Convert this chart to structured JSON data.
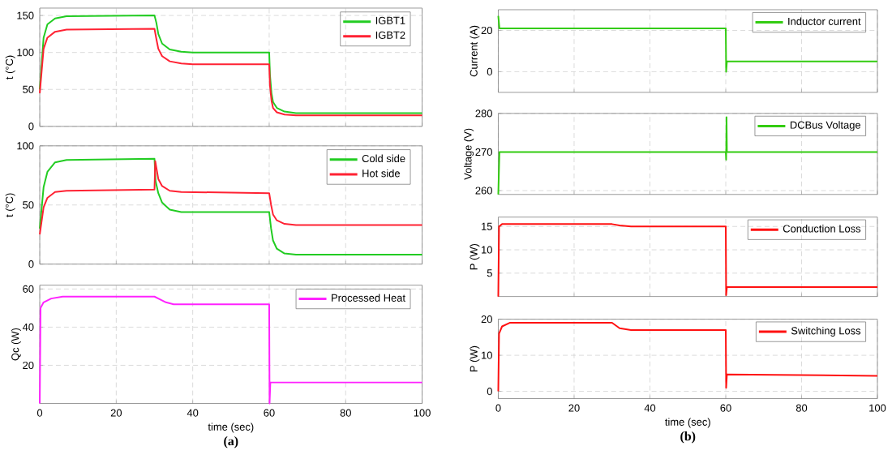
{
  "chart_data": [
    {
      "type": "line",
      "ylabel": "t (°C)",
      "xlim": [
        0,
        100
      ],
      "ylim": [
        0,
        160
      ],
      "xticks": [
        0,
        20,
        40,
        60,
        80,
        100
      ],
      "yticks": [
        0,
        50,
        100,
        150
      ],
      "tick_labels": "y",
      "grid": true,
      "legend": "top right",
      "series": [
        {
          "name": "IGBT1",
          "color": "#22cc22",
          "x": [
            0,
            1,
            2,
            4,
            7,
            30,
            30.5,
            31,
            32,
            34,
            37,
            40,
            60,
            60.2,
            60.6,
            61,
            62,
            64,
            67,
            100
          ],
          "values": [
            50,
            120,
            138,
            146,
            149,
            150,
            140,
            125,
            112,
            104,
            101,
            100,
            100,
            70,
            45,
            33,
            25,
            20,
            18,
            18
          ]
        },
        {
          "name": "IGBT2",
          "color": "#ff2233",
          "x": [
            0,
            1,
            2,
            4,
            7,
            30,
            30.5,
            31,
            32,
            34,
            37,
            40,
            60,
            60.2,
            60.6,
            61,
            62,
            64,
            67,
            100
          ],
          "values": [
            45,
            105,
            120,
            128,
            131,
            132,
            118,
            105,
            95,
            88,
            85,
            84,
            84,
            55,
            35,
            25,
            19,
            16,
            15,
            15
          ]
        }
      ]
    },
    {
      "type": "line",
      "ylabel": "t (°C)",
      "xlim": [
        0,
        100
      ],
      "ylim": [
        0,
        100
      ],
      "xticks": [
        0,
        20,
        40,
        60,
        80,
        100
      ],
      "yticks": [
        0,
        50,
        100
      ],
      "tick_labels": "y",
      "grid": true,
      "legend": "top right",
      "series": [
        {
          "name": "Cold side",
          "color": "#22cc22",
          "x": [
            0,
            1,
            2,
            4,
            7,
            30,
            30.3,
            31,
            32,
            34,
            37,
            60,
            60.5,
            61,
            62,
            64,
            67,
            100
          ],
          "values": [
            30,
            65,
            78,
            86,
            88,
            89,
            70,
            60,
            52,
            46,
            44,
            44,
            30,
            20,
            13,
            9,
            8,
            8
          ]
        },
        {
          "name": "Hot side",
          "color": "#ff2233",
          "x": [
            0,
            1,
            2,
            4,
            7,
            30,
            30.2,
            31,
            32,
            34,
            37,
            60,
            60.5,
            61,
            62,
            64,
            67,
            100
          ],
          "values": [
            25,
            48,
            56,
            61,
            62,
            63,
            87,
            72,
            66,
            62,
            61,
            60,
            50,
            42,
            37,
            34,
            33,
            33
          ]
        }
      ]
    },
    {
      "type": "line",
      "ylabel": "Qc (W)",
      "xlabel": "time (sec)",
      "xlim": [
        0,
        100
      ],
      "ylim": [
        0,
        62
      ],
      "xticks": [
        0,
        20,
        40,
        60,
        80,
        100
      ],
      "yticks": [
        20,
        40,
        60
      ],
      "grid": true,
      "legend": "top right",
      "annotations": [
        "(a)"
      ],
      "series": [
        {
          "name": "Processed Heat",
          "color": "#ff22ff",
          "x": [
            0,
            0.2,
            1,
            3,
            6,
            30,
            31,
            33,
            35,
            60,
            60.1,
            60.3,
            100
          ],
          "values": [
            0,
            50,
            53,
            55,
            56,
            56,
            55,
            53,
            52,
            52,
            0,
            11,
            11
          ]
        }
      ]
    },
    {
      "type": "line",
      "ylabel": "Current (A)",
      "xlim": [
        0,
        100
      ],
      "ylim": [
        -10,
        30
      ],
      "xticks": [
        0,
        20,
        40,
        60,
        80,
        100
      ],
      "yticks": [
        0,
        20
      ],
      "tick_labels": "y",
      "grid": true,
      "legend": "top right",
      "series": [
        {
          "name": "Inductor current",
          "color": "#33cc11",
          "x": [
            0,
            0.3,
            60,
            60.1,
            60.3,
            100
          ],
          "values": [
            27,
            21,
            21,
            0,
            5,
            5
          ]
        }
      ]
    },
    {
      "type": "line",
      "ylabel": "Voltage (V)",
      "xlim": [
        0,
        100
      ],
      "ylim": [
        259,
        280
      ],
      "xticks": [
        0,
        20,
        40,
        60,
        80,
        100
      ],
      "yticks": [
        260,
        270,
        280
      ],
      "tick_labels": "y",
      "grid": true,
      "legend": "top right",
      "series": [
        {
          "name": "DCBus Voltage",
          "color": "#33cc11",
          "x": [
            0,
            0.3,
            60,
            60.1,
            60.2,
            60.3,
            100
          ],
          "values": [
            259,
            270,
            270,
            268,
            279,
            270,
            270
          ]
        }
      ]
    },
    {
      "type": "line",
      "ylabel": "P (W)",
      "xlim": [
        0,
        100
      ],
      "ylim": [
        0,
        17
      ],
      "xticks": [
        0,
        20,
        40,
        60,
        80,
        100
      ],
      "yticks": [
        5,
        10,
        15
      ],
      "tick_labels": "y",
      "grid": true,
      "legend": "top right",
      "series": [
        {
          "name": "Conduction Loss",
          "color": "#ff1111",
          "x": [
            0,
            0.2,
            1,
            30,
            32,
            35,
            60,
            60.1,
            60.3,
            100
          ],
          "values": [
            0,
            15,
            15.5,
            15.5,
            15.2,
            15,
            15,
            0.3,
            2,
            2
          ]
        }
      ]
    },
    {
      "type": "line",
      "ylabel": "P (W)",
      "xlabel": "time (sec)",
      "xlim": [
        0,
        100
      ],
      "ylim": [
        -2,
        20
      ],
      "xticks": [
        0,
        20,
        40,
        60,
        80,
        100
      ],
      "yticks": [
        0,
        10,
        20
      ],
      "grid": true,
      "legend": "top right",
      "annotations": [
        "(b)"
      ],
      "series": [
        {
          "name": "Switching Loss",
          "color": "#ff1111",
          "x": [
            0,
            0.2,
            1,
            3,
            30,
            32,
            35,
            60,
            60.1,
            60.3,
            100
          ],
          "values": [
            0,
            16,
            18,
            19,
            19,
            17.5,
            17,
            17,
            1,
            4.7,
            4.3
          ]
        }
      ]
    }
  ]
}
